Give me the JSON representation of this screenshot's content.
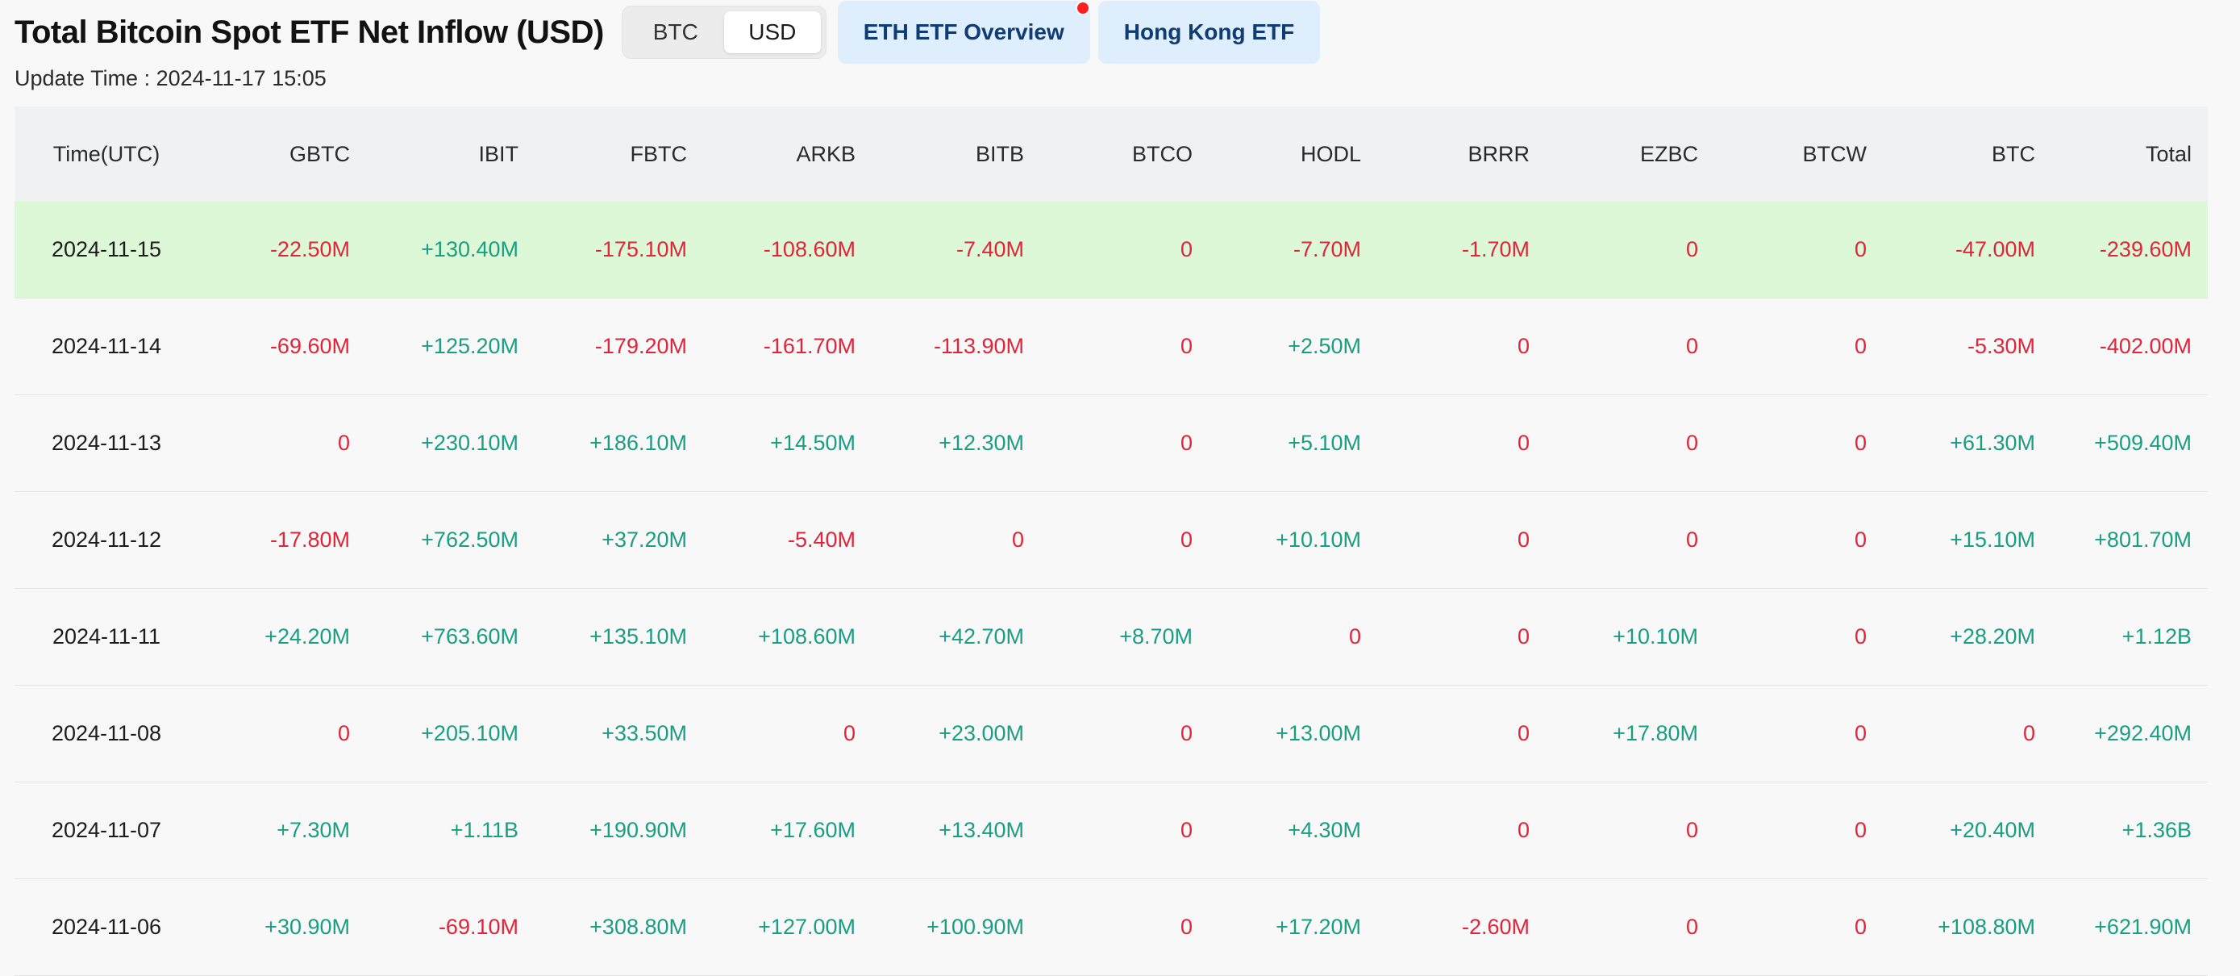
{
  "header": {
    "title": "Total Bitcoin Spot ETF Net Inflow (USD)",
    "toggle": [
      "BTC",
      "USD"
    ],
    "toggle_active": "USD",
    "links": [
      "ETH ETF Overview",
      "Hong Kong ETF"
    ],
    "update_time": "Update Time : 2024-11-17 15:05"
  },
  "colors": {
    "positive": "#1a9e82",
    "negative": "#e0253a",
    "highlight_row": "#dcf8d6",
    "link_bg": "#dfeefc",
    "link_text": "#0f3d73",
    "notification_dot": "#ff1f1f"
  },
  "table": {
    "columns": [
      "Time(UTC)",
      "GBTC",
      "IBIT",
      "FBTC",
      "ARKB",
      "BITB",
      "BTCO",
      "HODL",
      "BRRR",
      "EZBC",
      "BTCW",
      "BTC",
      "Total"
    ],
    "rows": [
      [
        "2024-11-15",
        "-22.50M",
        "+130.40M",
        "-175.10M",
        "-108.60M",
        "-7.40M",
        "0",
        "-7.70M",
        "-1.70M",
        "0",
        "0",
        "-47.00M",
        "-239.60M"
      ],
      [
        "2024-11-14",
        "-69.60M",
        "+125.20M",
        "-179.20M",
        "-161.70M",
        "-113.90M",
        "0",
        "+2.50M",
        "0",
        "0",
        "0",
        "-5.30M",
        "-402.00M"
      ],
      [
        "2024-11-13",
        "0",
        "+230.10M",
        "+186.10M",
        "+14.50M",
        "+12.30M",
        "0",
        "+5.10M",
        "0",
        "0",
        "0",
        "+61.30M",
        "+509.40M"
      ],
      [
        "2024-11-12",
        "-17.80M",
        "+762.50M",
        "+37.20M",
        "-5.40M",
        "0",
        "0",
        "+10.10M",
        "0",
        "0",
        "0",
        "+15.10M",
        "+801.70M"
      ],
      [
        "2024-11-11",
        "+24.20M",
        "+763.60M",
        "+135.10M",
        "+108.60M",
        "+42.70M",
        "+8.70M",
        "0",
        "0",
        "+10.10M",
        "0",
        "+28.20M",
        "+1.12B"
      ],
      [
        "2024-11-08",
        "0",
        "+205.10M",
        "+33.50M",
        "0",
        "+23.00M",
        "0",
        "+13.00M",
        "0",
        "+17.80M",
        "0",
        "0",
        "+292.40M"
      ],
      [
        "2024-11-07",
        "+7.30M",
        "+1.11B",
        "+190.90M",
        "+17.60M",
        "+13.40M",
        "0",
        "+4.30M",
        "0",
        "0",
        "0",
        "+20.40M",
        "+1.36B"
      ],
      [
        "2024-11-06",
        "+30.90M",
        "-69.10M",
        "+308.80M",
        "+127.00M",
        "+100.90M",
        "0",
        "+17.20M",
        "-2.60M",
        "0",
        "0",
        "+108.80M",
        "+621.90M"
      ]
    ]
  }
}
